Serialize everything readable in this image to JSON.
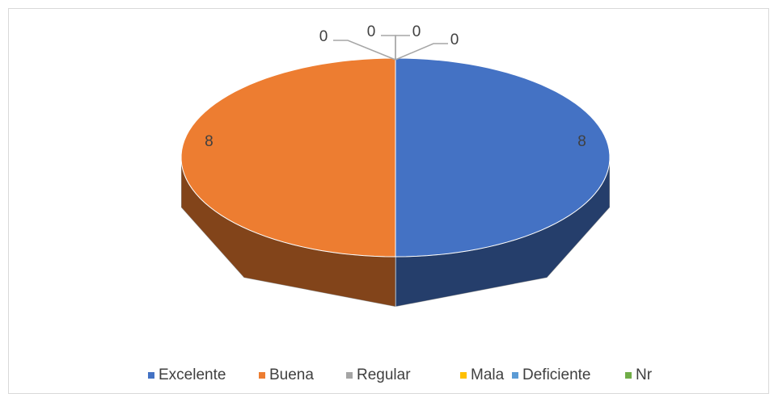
{
  "chart_data": {
    "type": "pie",
    "categories": [
      "Excelente",
      "Buena",
      "Regular",
      "Mala",
      "Deficiente",
      "Nr"
    ],
    "values": [
      8,
      8,
      0,
      0,
      0,
      0
    ],
    "colors": [
      "#4472c4",
      "#ed7d31",
      "#a5a5a5",
      "#ffc000",
      "#5b9bd5",
      "#70ad47"
    ],
    "legend": "bottom"
  }
}
